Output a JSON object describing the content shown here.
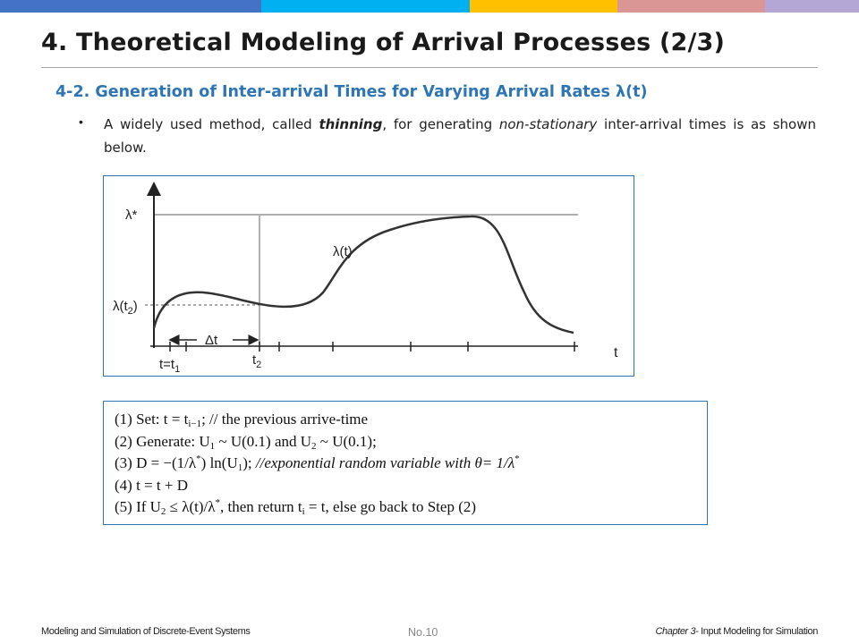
{
  "colors": {
    "accent": "#2E75B6",
    "top_bar": [
      "#4472C4",
      "#00B0F0",
      "#FFC000",
      "#D99694",
      "#B4A7D6"
    ]
  },
  "slide": {
    "title": "4. Theoretical Modeling of Arrival Processes (2/3)",
    "subtitle": "4-2. Generation of Inter-arrival Times for Varying Arrival Rates λ(t)",
    "bullet": {
      "t1": "A widely used method, called ",
      "t2": "thinning",
      "t3": ", for generating ",
      "t4": "non-stationary",
      "t5": " inter-arrival times is as shown below."
    }
  },
  "figure": {
    "lambda_star": "λ*",
    "lambda_t": "λ(t)",
    "lambda_t2": "λ(t",
    "lambda_t2_sub": "2",
    "lambda_t2_close": ")",
    "delta_t": "Δt",
    "t_axis": "t",
    "t_eq": "t=t",
    "t_eq_sub": "1",
    "t2": "t",
    "t2_sub": "2"
  },
  "algorithm": {
    "l1": {
      "a": "(1) Set: t = t",
      "sub": "i−1",
      "b": "; // the previous arrive-time"
    },
    "l2": {
      "a": "(2) Generate: U",
      "s1": "1",
      "b": " ~ U(0.1) and U",
      "s2": "2",
      "c": " ~ U(0.1);"
    },
    "l3": {
      "a": "(3) D = −(1/λ",
      "sup1": "*",
      "b": ") ln(U",
      "s1": "1",
      "c": "); ",
      "d": "//exponential random variable with θ= 1/λ",
      "sup2": "*"
    },
    "l4": {
      "a": "(4) t = t + D"
    },
    "l5": {
      "a": "(5) If U",
      "s1": "2",
      "b": " ≤ λ(t)/λ",
      "sup1": "*",
      "c": ", then return t",
      "s2": "i",
      "d": " = t, else go back to Step (2)"
    }
  },
  "footer": {
    "left": "Modeling and Simulation of Discrete-Event Systems",
    "center": "No.10",
    "right_a": "Chapter 3",
    "right_b": "- Input Modeling for Simulation"
  }
}
